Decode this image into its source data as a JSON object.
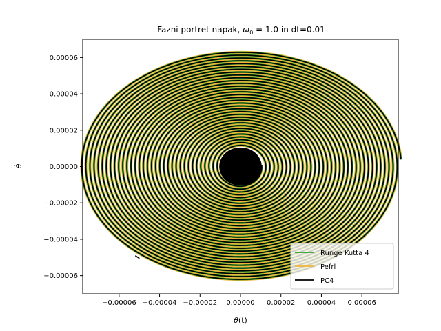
{
  "chart_data": {
    "type": "line",
    "title": "Fazni portret napak, ω₀ = 1.0 in dt=0.01",
    "title_parts": {
      "prefix": "Fazni portret napak, ",
      "symbol": "ω",
      "subscript": "0",
      "suffix": " = 1.0 in dt=0.01"
    },
    "xlabel": "θ(t)",
    "xlabel_parts": {
      "symbol": "θ",
      "rest": "(t)"
    },
    "ylabel": "θ̇",
    "xlim": [
      -7.8e-05,
      7.8e-05
    ],
    "ylim": [
      -7e-05,
      7e-05
    ],
    "x_ticks": [
      -6e-05,
      -4e-05,
      -2e-05,
      0.0,
      2e-05,
      4e-05,
      6e-05
    ],
    "x_tick_labels": [
      "−0.00006",
      "−0.00004",
      "−0.00002",
      "0.00000",
      "0.00002",
      "0.00004",
      "0.00006"
    ],
    "y_ticks": [
      -6e-05,
      -4e-05,
      -2e-05,
      0.0,
      2e-05,
      4e-05,
      6e-05
    ],
    "y_tick_labels": [
      "−0.00006",
      "−0.00004",
      "−0.00002",
      "0.00000",
      "0.00002",
      "0.00004",
      "0.00006"
    ],
    "grid": false,
    "legend_position": "lower-right",
    "spiral": {
      "center": [
        0.0,
        0.0
      ],
      "start_point": [
        6.1e-05,
        3e-06
      ],
      "end_point": [
        -5.2e-05,
        -4.9e-05
      ],
      "outer_radius_x": 7.95e-05,
      "outer_radius_y": 6.32e-05,
      "inner_radius_x": 1.05e-05,
      "inner_radius_y": 1.05e-05,
      "turns": 34
    },
    "series": [
      {
        "name": "Runge Kutta 4",
        "color": "#2ca02c"
      },
      {
        "name": "Pefrl",
        "color": "#f0b43c"
      },
      {
        "name": "PC4",
        "color": "#000000"
      }
    ]
  }
}
